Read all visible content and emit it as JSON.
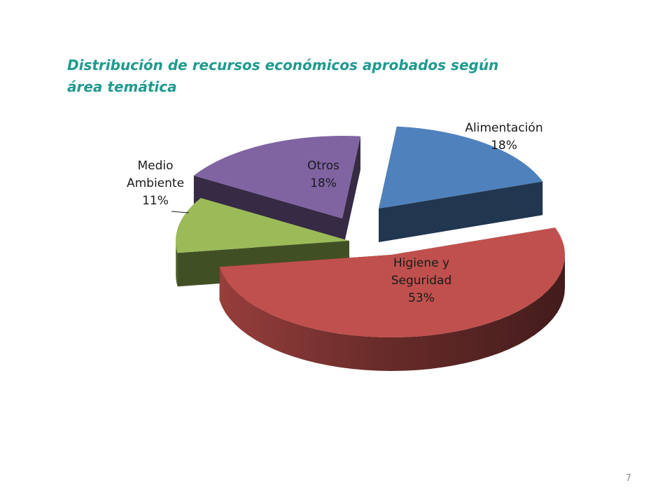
{
  "chart_data": {
    "type": "pie",
    "style": "3d-exploded",
    "title": "Distribución de recursos económicos aprobados según área temática",
    "title_lines": [
      "Distribución de recursos económicos aprobados según",
      "área temática"
    ],
    "title_color": "#1f9a8f",
    "slices": [
      {
        "key": "alimentacion",
        "name": "Alimentación",
        "name_lines": [
          "Alimentación"
        ],
        "value": 18,
        "label": "18%",
        "color": "#4f81bd"
      },
      {
        "key": "higiene",
        "name": "Higiene y Seguridad",
        "name_lines": [
          "Higiene y",
          "Seguridad"
        ],
        "value": 53,
        "label": "53%",
        "color": "#c0504d"
      },
      {
        "key": "medio",
        "name": "Medio Ambiente",
        "name_lines": [
          "Medio",
          "Ambiente"
        ],
        "value": 11,
        "label": "11%",
        "color": "#9bbb59"
      },
      {
        "key": "otros",
        "name": "Otros",
        "name_lines": [
          "Otros"
        ],
        "value": 18,
        "label": "18%",
        "color": "#8064a2"
      }
    ]
  },
  "page_number": "7"
}
